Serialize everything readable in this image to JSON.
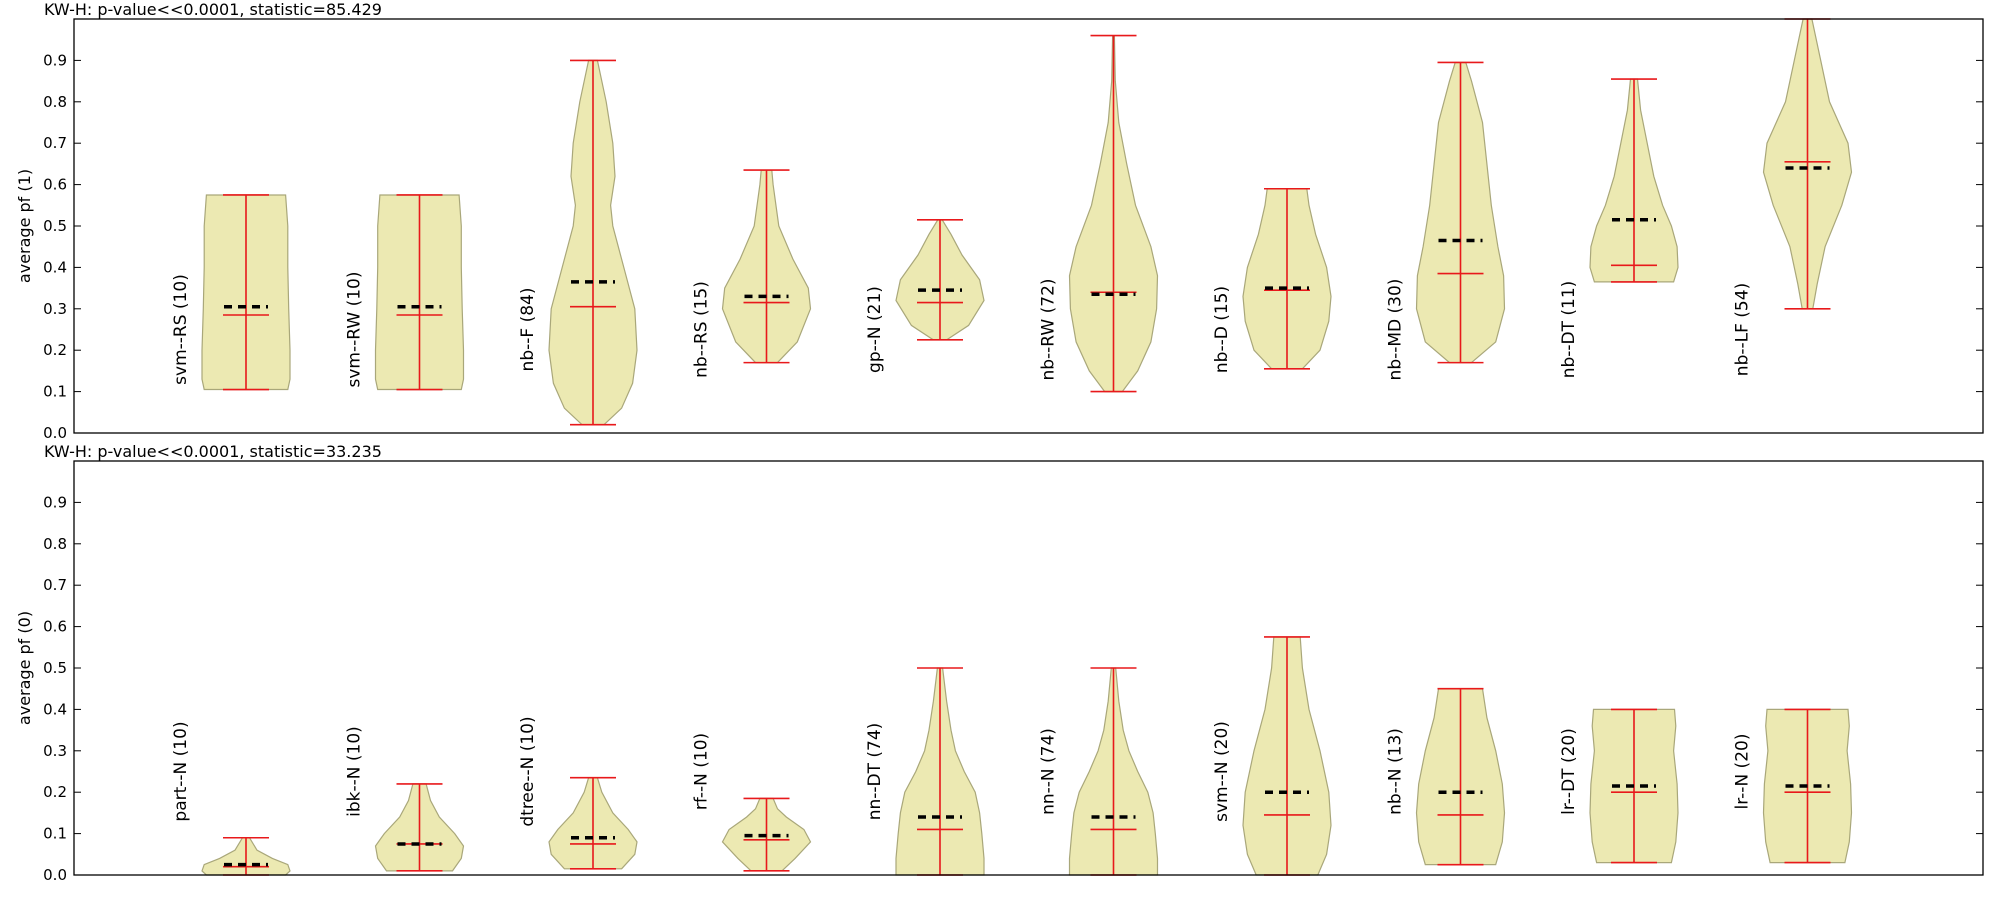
{
  "colors": {
    "violin_fill": "#ece9b2",
    "violin_edge": "#a9a77a",
    "whisker": "#e8191b",
    "mean_marker": "#000000",
    "axes": "#000000"
  },
  "chart_data": [
    {
      "type": "violin",
      "title": "KW-H: p-value<<0.0001, statistic=85.429",
      "ylabel": "average pf (1)",
      "ylim": [
        0,
        1
      ],
      "yticks": [
        "0.0",
        "0.1",
        "0.2",
        "0.3",
        "0.4",
        "0.5",
        "0.6",
        "0.7",
        "0.8",
        "0.9"
      ],
      "grid": false,
      "groups": [
        {
          "label": "svm--RS (10)",
          "min": 0.105,
          "max": 0.575,
          "median": 0.285,
          "mean": 0.305,
          "density": [
            [
              0.105,
              0.95
            ],
            [
              0.13,
              1
            ],
            [
              0.2,
              1
            ],
            [
              0.3,
              0.97
            ],
            [
              0.4,
              0.95
            ],
            [
              0.5,
              0.95
            ],
            [
              0.575,
              0.9
            ]
          ]
        },
        {
          "label": "svm--RW (10)",
          "min": 0.105,
          "max": 0.575,
          "median": 0.285,
          "mean": 0.305,
          "density": [
            [
              0.105,
              0.95
            ],
            [
              0.13,
              1
            ],
            [
              0.2,
              1
            ],
            [
              0.3,
              0.97
            ],
            [
              0.4,
              0.95
            ],
            [
              0.5,
              0.95
            ],
            [
              0.575,
              0.9
            ]
          ]
        },
        {
          "label": "nb--F (84)",
          "min": 0.02,
          "max": 0.9,
          "median": 0.305,
          "mean": 0.365,
          "density": [
            [
              0.02,
              0.25
            ],
            [
              0.06,
              0.65
            ],
            [
              0.12,
              0.9
            ],
            [
              0.2,
              1
            ],
            [
              0.3,
              0.95
            ],
            [
              0.4,
              0.7
            ],
            [
              0.5,
              0.45
            ],
            [
              0.55,
              0.4
            ],
            [
              0.62,
              0.5
            ],
            [
              0.7,
              0.45
            ],
            [
              0.8,
              0.3
            ],
            [
              0.9,
              0.1
            ]
          ]
        },
        {
          "label": "nb--RS (15)",
          "min": 0.17,
          "max": 0.635,
          "median": 0.315,
          "mean": 0.33,
          "density": [
            [
              0.17,
              0.25
            ],
            [
              0.22,
              0.7
            ],
            [
              0.3,
              1
            ],
            [
              0.35,
              0.95
            ],
            [
              0.42,
              0.6
            ],
            [
              0.5,
              0.28
            ],
            [
              0.6,
              0.15
            ],
            [
              0.635,
              0.12
            ]
          ]
        },
        {
          "label": "gp--N (21)",
          "min": 0.225,
          "max": 0.515,
          "median": 0.315,
          "mean": 0.345,
          "density": [
            [
              0.225,
              0.15
            ],
            [
              0.26,
              0.65
            ],
            [
              0.32,
              1
            ],
            [
              0.37,
              0.9
            ],
            [
              0.43,
              0.5
            ],
            [
              0.48,
              0.25
            ],
            [
              0.515,
              0.05
            ]
          ]
        },
        {
          "label": "nb--RW (72)",
          "min": 0.1,
          "max": 0.96,
          "median": 0.34,
          "mean": 0.335,
          "density": [
            [
              0.1,
              0.2
            ],
            [
              0.15,
              0.55
            ],
            [
              0.22,
              0.85
            ],
            [
              0.3,
              0.98
            ],
            [
              0.38,
              1
            ],
            [
              0.45,
              0.85
            ],
            [
              0.55,
              0.5
            ],
            [
              0.65,
              0.3
            ],
            [
              0.75,
              0.12
            ],
            [
              0.85,
              0.04
            ],
            [
              0.96,
              0.02
            ]
          ]
        },
        {
          "label": "nb--D (15)",
          "min": 0.155,
          "max": 0.59,
          "median": 0.345,
          "mean": 0.35,
          "density": [
            [
              0.155,
              0.35
            ],
            [
              0.2,
              0.75
            ],
            [
              0.27,
              0.95
            ],
            [
              0.33,
              1
            ],
            [
              0.4,
              0.9
            ],
            [
              0.48,
              0.65
            ],
            [
              0.55,
              0.5
            ],
            [
              0.59,
              0.45
            ]
          ]
        },
        {
          "label": "nb--MD (30)",
          "min": 0.17,
          "max": 0.895,
          "median": 0.385,
          "mean": 0.465,
          "density": [
            [
              0.17,
              0.25
            ],
            [
              0.22,
              0.8
            ],
            [
              0.3,
              1
            ],
            [
              0.38,
              0.98
            ],
            [
              0.45,
              0.85
            ],
            [
              0.55,
              0.7
            ],
            [
              0.65,
              0.6
            ],
            [
              0.75,
              0.5
            ],
            [
              0.85,
              0.25
            ],
            [
              0.895,
              0.12
            ]
          ]
        },
        {
          "label": "nb--DT (11)",
          "min": 0.365,
          "max": 0.855,
          "median": 0.405,
          "mean": 0.515,
          "density": [
            [
              0.365,
              0.9
            ],
            [
              0.4,
              1
            ],
            [
              0.45,
              0.98
            ],
            [
              0.5,
              0.85
            ],
            [
              0.55,
              0.65
            ],
            [
              0.62,
              0.45
            ],
            [
              0.7,
              0.3
            ],
            [
              0.78,
              0.15
            ],
            [
              0.855,
              0.08
            ]
          ]
        },
        {
          "label": "nb--LF (54)",
          "min": 0.3,
          "max": 1.0,
          "median": 0.655,
          "mean": 0.64,
          "density": [
            [
              0.3,
              0.12
            ],
            [
              0.36,
              0.22
            ],
            [
              0.45,
              0.4
            ],
            [
              0.55,
              0.78
            ],
            [
              0.63,
              1
            ],
            [
              0.7,
              0.92
            ],
            [
              0.8,
              0.5
            ],
            [
              0.9,
              0.3
            ],
            [
              1.0,
              0.1
            ]
          ]
        }
      ]
    },
    {
      "type": "violin",
      "title": "KW-H: p-value<<0.0001, statistic=33.235",
      "ylabel": "average pf (0)",
      "ylim": [
        0,
        1
      ],
      "yticks": [
        "0.0",
        "0.1",
        "0.2",
        "0.3",
        "0.4",
        "0.5",
        "0.6",
        "0.7",
        "0.8",
        "0.9"
      ],
      "grid": false,
      "groups": [
        {
          "label": "part--N (10)",
          "min": 0.0,
          "max": 0.09,
          "median": 0.02,
          "mean": 0.025,
          "density": [
            [
              0.0,
              0.9
            ],
            [
              0.01,
              1
            ],
            [
              0.025,
              0.95
            ],
            [
              0.04,
              0.6
            ],
            [
              0.06,
              0.25
            ],
            [
              0.09,
              0.08
            ]
          ]
        },
        {
          "label": "ibk--N (10)",
          "min": 0.01,
          "max": 0.22,
          "median": 0.075,
          "mean": 0.075,
          "density": [
            [
              0.01,
              0.75
            ],
            [
              0.04,
              0.95
            ],
            [
              0.07,
              1
            ],
            [
              0.1,
              0.8
            ],
            [
              0.14,
              0.45
            ],
            [
              0.18,
              0.25
            ],
            [
              0.22,
              0.15
            ]
          ]
        },
        {
          "label": "dtree--N (10)",
          "min": 0.015,
          "max": 0.235,
          "median": 0.075,
          "mean": 0.09,
          "density": [
            [
              0.015,
              0.65
            ],
            [
              0.05,
              0.95
            ],
            [
              0.08,
              1
            ],
            [
              0.11,
              0.8
            ],
            [
              0.15,
              0.45
            ],
            [
              0.2,
              0.2
            ],
            [
              0.235,
              0.1
            ]
          ]
        },
        {
          "label": "rf--N (10)",
          "min": 0.01,
          "max": 0.185,
          "median": 0.085,
          "mean": 0.095,
          "density": [
            [
              0.01,
              0.35
            ],
            [
              0.04,
              0.65
            ],
            [
              0.08,
              1
            ],
            [
              0.11,
              0.85
            ],
            [
              0.14,
              0.45
            ],
            [
              0.16,
              0.25
            ],
            [
              0.185,
              0.15
            ]
          ]
        },
        {
          "label": "nn--DT (74)",
          "min": 0.0,
          "max": 0.5,
          "median": 0.11,
          "mean": 0.14,
          "density": [
            [
              0.0,
              1
            ],
            [
              0.04,
              1
            ],
            [
              0.1,
              0.95
            ],
            [
              0.15,
              0.9
            ],
            [
              0.2,
              0.8
            ],
            [
              0.25,
              0.55
            ],
            [
              0.3,
              0.35
            ],
            [
              0.35,
              0.25
            ],
            [
              0.42,
              0.15
            ],
            [
              0.5,
              0.06
            ]
          ]
        },
        {
          "label": "nn--N (74)",
          "min": 0.0,
          "max": 0.5,
          "median": 0.11,
          "mean": 0.14,
          "density": [
            [
              0.0,
              1
            ],
            [
              0.04,
              1
            ],
            [
              0.1,
              0.95
            ],
            [
              0.15,
              0.9
            ],
            [
              0.2,
              0.78
            ],
            [
              0.25,
              0.55
            ],
            [
              0.3,
              0.35
            ],
            [
              0.35,
              0.22
            ],
            [
              0.42,
              0.12
            ],
            [
              0.5,
              0.05
            ]
          ]
        },
        {
          "label": "svm--N (20)",
          "min": 0.0,
          "max": 0.575,
          "median": 0.145,
          "mean": 0.2,
          "density": [
            [
              0.0,
              0.7
            ],
            [
              0.05,
              0.9
            ],
            [
              0.12,
              1
            ],
            [
              0.2,
              0.95
            ],
            [
              0.3,
              0.75
            ],
            [
              0.4,
              0.5
            ],
            [
              0.5,
              0.35
            ],
            [
              0.575,
              0.3
            ]
          ]
        },
        {
          "label": "nb--N (13)",
          "min": 0.025,
          "max": 0.45,
          "median": 0.145,
          "mean": 0.2,
          "density": [
            [
              0.025,
              0.8
            ],
            [
              0.08,
              0.95
            ],
            [
              0.15,
              1
            ],
            [
              0.22,
              0.95
            ],
            [
              0.3,
              0.8
            ],
            [
              0.38,
              0.6
            ],
            [
              0.45,
              0.5
            ]
          ]
        },
        {
          "label": "lr--DT (20)",
          "min": 0.03,
          "max": 0.4,
          "median": 0.2,
          "mean": 0.215,
          "density": [
            [
              0.03,
              0.85
            ],
            [
              0.08,
              0.95
            ],
            [
              0.15,
              1
            ],
            [
              0.22,
              0.98
            ],
            [
              0.3,
              0.9
            ],
            [
              0.36,
              0.95
            ],
            [
              0.4,
              0.92
            ]
          ]
        },
        {
          "label": "lr--N (20)",
          "min": 0.03,
          "max": 0.4,
          "median": 0.2,
          "mean": 0.215,
          "density": [
            [
              0.03,
              0.85
            ],
            [
              0.08,
              0.95
            ],
            [
              0.15,
              1
            ],
            [
              0.22,
              0.98
            ],
            [
              0.3,
              0.9
            ],
            [
              0.36,
              0.95
            ],
            [
              0.4,
              0.92
            ]
          ]
        }
      ]
    }
  ]
}
